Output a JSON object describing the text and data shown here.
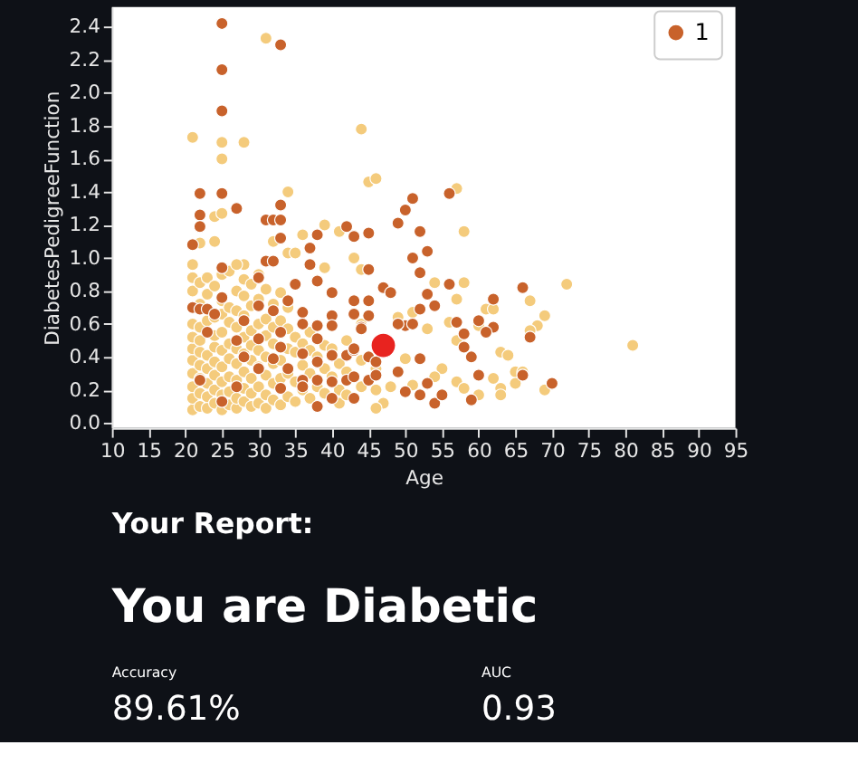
{
  "chart_data": [
    {
      "type": "scatter",
      "xlabel": "Age",
      "ylabel": "DiabetesPedigreeFunction",
      "xlim": [
        10,
        95
      ],
      "ylim": [
        -0.03,
        2.52
      ],
      "xticks": [
        10,
        15,
        20,
        25,
        30,
        35,
        40,
        45,
        50,
        55,
        60,
        65,
        70,
        75,
        80,
        85,
        90,
        95
      ],
      "yticks": [
        {
          "value": 0,
          "label": "0.0"
        },
        {
          "value": 0.2,
          "label": "0.2"
        },
        {
          "value": 0.4,
          "label": "0.4"
        },
        {
          "value": 0.6,
          "label": "0.6"
        },
        {
          "value": 0.8,
          "label": "0.8"
        },
        {
          "value": 1,
          "label": "1.0"
        },
        {
          "value": 1.2,
          "label": "1.2"
        },
        {
          "value": 1.4,
          "label": "1.4"
        },
        {
          "value": 1.6,
          "label": "1.6"
        },
        {
          "value": 1.8,
          "label": "1.8"
        },
        {
          "value": 2,
          "label": "2.0"
        },
        {
          "value": 2.2,
          "label": "2.2"
        },
        {
          "value": 2.4,
          "label": "2.4"
        }
      ],
      "marker": "circle",
      "grid": false,
      "legend": "top right",
      "series": [
        {
          "color": "#f4cb7c",
          "x": [
            21,
            25,
            28,
            25,
            44,
            45,
            46,
            34,
            24,
            25,
            24,
            22,
            32,
            34,
            35,
            36,
            39,
            41,
            43,
            21,
            28,
            39,
            31,
            57,
            58,
            44,
            54,
            58,
            57,
            61,
            62,
            60,
            67,
            72,
            69,
            68,
            67,
            63,
            64,
            81,
            65,
            66,
            65,
            69,
            63,
            62,
            63,
            60,
            57,
            58,
            55,
            54,
            51,
            47,
            48,
            50,
            53,
            56,
            57,
            49,
            51,
            21,
            21,
            21,
            21,
            21,
            21,
            21,
            21,
            21,
            21,
            22,
            22,
            22,
            22,
            22,
            22,
            22,
            22,
            22,
            23,
            23,
            23,
            23,
            23,
            23,
            23,
            23,
            24,
            24,
            24,
            24,
            24,
            24,
            24,
            24,
            25,
            25,
            25,
            25,
            25,
            25,
            25,
            25,
            25,
            26,
            26,
            26,
            26,
            26,
            26,
            26,
            26,
            27,
            27,
            27,
            27,
            27,
            27,
            27,
            27,
            27,
            28,
            28,
            28,
            28,
            28,
            28,
            28,
            28,
            29,
            29,
            29,
            29,
            29,
            29,
            29,
            29,
            30,
            30,
            30,
            30,
            30,
            30,
            30,
            31,
            31,
            31,
            31,
            31,
            31,
            31,
            32,
            32,
            32,
            32,
            32,
            32,
            33,
            33,
            33,
            33,
            33,
            34,
            34,
            34,
            34,
            34,
            35,
            35,
            35,
            35,
            36,
            36,
            36,
            37,
            37,
            37,
            37,
            38,
            38,
            39,
            39,
            39,
            40,
            40,
            41,
            41,
            41,
            42,
            42,
            42,
            44,
            44,
            44,
            46,
            46,
            46
          ],
          "values": [
            1.73,
            1.7,
            1.7,
            1.6,
            1.78,
            1.46,
            1.48,
            1.4,
            1.25,
            1.27,
            1.1,
            1.09,
            1.1,
            1.03,
            1.03,
            1.14,
            1.2,
            1.16,
            1.0,
            0.96,
            0.96,
            0.94,
            2.33,
            1.42,
            1.16,
            0.93,
            0.85,
            0.85,
            0.75,
            0.69,
            0.69,
            0.59,
            0.74,
            0.84,
            0.65,
            0.59,
            0.56,
            0.43,
            0.41,
            0.47,
            0.31,
            0.31,
            0.24,
            0.2,
            0.21,
            0.27,
            0.17,
            0.17,
            0.25,
            0.21,
            0.33,
            0.28,
            0.23,
            0.12,
            0.22,
            0.39,
            0.57,
            0.61,
            0.5,
            0.64,
            0.67,
            0.08,
            0.15,
            0.22,
            0.3,
            0.38,
            0.45,
            0.52,
            0.6,
            0.8,
            0.88,
            0.1,
            0.18,
            0.27,
            0.35,
            0.43,
            0.5,
            0.58,
            0.72,
            0.85,
            0.09,
            0.16,
            0.24,
            0.33,
            0.41,
            0.62,
            0.78,
            0.88,
            0.12,
            0.2,
            0.29,
            0.37,
            0.46,
            0.53,
            0.64,
            0.83,
            0.08,
            0.17,
            0.25,
            0.34,
            0.44,
            0.55,
            0.66,
            0.74,
            0.9,
            0.11,
            0.19,
            0.28,
            0.39,
            0.48,
            0.61,
            0.7,
            0.92,
            0.09,
            0.15,
            0.26,
            0.36,
            0.45,
            0.58,
            0.68,
            0.8,
            0.96,
            0.13,
            0.21,
            0.31,
            0.42,
            0.52,
            0.65,
            0.77,
            0.87,
            0.1,
            0.18,
            0.27,
            0.38,
            0.47,
            0.56,
            0.71,
            0.84,
            0.12,
            0.22,
            0.34,
            0.44,
            0.6,
            0.75,
            0.9,
            0.09,
            0.17,
            0.29,
            0.4,
            0.53,
            0.63,
            0.81,
            0.14,
            0.24,
            0.36,
            0.48,
            0.58,
            0.72,
            0.11,
            0.27,
            0.38,
            0.62,
            0.79,
            0.16,
            0.3,
            0.45,
            0.57,
            0.7,
            0.13,
            0.25,
            0.43,
            0.52,
            0.2,
            0.35,
            0.48,
            0.15,
            0.3,
            0.44,
            0.55,
            0.22,
            0.4,
            0.18,
            0.33,
            0.47,
            0.28,
            0.45,
            0.12,
            0.2,
            0.36,
            0.17,
            0.31,
            0.5,
            0.22,
            0.38,
            0.6,
            0.09,
            0.2,
            0.33
          ]
        },
        {
          "name": "1",
          "color": "#c8622b",
          "x": [
            25,
            33,
            25,
            25,
            22,
            25,
            27,
            22,
            22,
            21,
            33,
            31,
            32,
            33,
            33,
            25,
            38,
            42,
            43,
            45,
            37,
            37,
            45,
            47,
            48,
            40,
            38,
            35,
            31,
            32,
            30,
            34,
            43,
            45,
            36,
            40,
            43,
            45,
            21,
            22,
            23,
            24,
            25,
            28,
            30,
            32,
            36,
            38,
            40,
            44,
            38,
            33,
            23,
            30,
            36,
            40,
            42,
            43,
            45,
            33,
            38,
            34,
            36,
            38,
            40,
            42,
            45,
            33,
            36,
            40,
            43,
            38,
            25,
            22,
            27,
            30,
            32,
            27,
            28,
            51,
            50,
            49,
            52,
            51,
            53,
            52,
            56,
            53,
            54,
            52,
            56,
            57,
            58,
            60,
            62,
            62,
            61,
            66,
            67,
            58,
            59,
            52,
            60,
            66,
            70,
            53,
            54,
            55,
            52,
            50,
            59,
            49,
            50,
            51,
            49,
            44,
            43,
            43,
            46,
            46
          ],
          "values": [
            2.42,
            2.29,
            2.14,
            1.89,
            1.39,
            1.39,
            1.3,
            1.26,
            1.19,
            1.08,
            1.32,
            1.23,
            1.23,
            1.23,
            1.12,
            0.94,
            1.14,
            1.19,
            1.13,
            1.15,
            1.06,
            0.96,
            0.93,
            0.82,
            0.79,
            0.79,
            0.86,
            0.84,
            0.98,
            0.98,
            0.88,
            0.74,
            0.74,
            0.74,
            0.67,
            0.65,
            0.66,
            0.65,
            0.7,
            0.69,
            0.69,
            0.66,
            0.76,
            0.62,
            0.71,
            0.68,
            0.6,
            0.59,
            0.59,
            0.58,
            0.51,
            0.55,
            0.55,
            0.51,
            0.42,
            0.41,
            0.41,
            0.44,
            0.4,
            0.46,
            0.37,
            0.33,
            0.26,
            0.26,
            0.25,
            0.26,
            0.26,
            0.21,
            0.22,
            0.15,
            0.15,
            0.1,
            0.13,
            0.26,
            0.22,
            0.33,
            0.39,
            0.5,
            0.4,
            1.36,
            1.29,
            1.21,
            1.16,
            1.0,
            1.04,
            0.91,
            1.39,
            0.78,
            0.71,
            0.69,
            0.84,
            0.61,
            0.54,
            0.62,
            0.75,
            0.58,
            0.55,
            0.82,
            0.52,
            0.46,
            0.4,
            0.39,
            0.29,
            0.29,
            0.24,
            0.24,
            0.12,
            0.17,
            0.17,
            0.19,
            0.14,
            0.31,
            0.59,
            0.6,
            0.6,
            0.57,
            0.45,
            0.28,
            0.37,
            0.29
          ]
        },
        {
          "color": "#e8231f",
          "x": [
            47
          ],
          "values": [
            0.47
          ]
        }
      ]
    },
    {
      "type": "other",
      "title": "Your Report:",
      "subtitle": "You are Diabetic",
      "annotations": [
        "Accuracy",
        "89.61%",
        "AUC",
        "0.93"
      ]
    }
  ]
}
